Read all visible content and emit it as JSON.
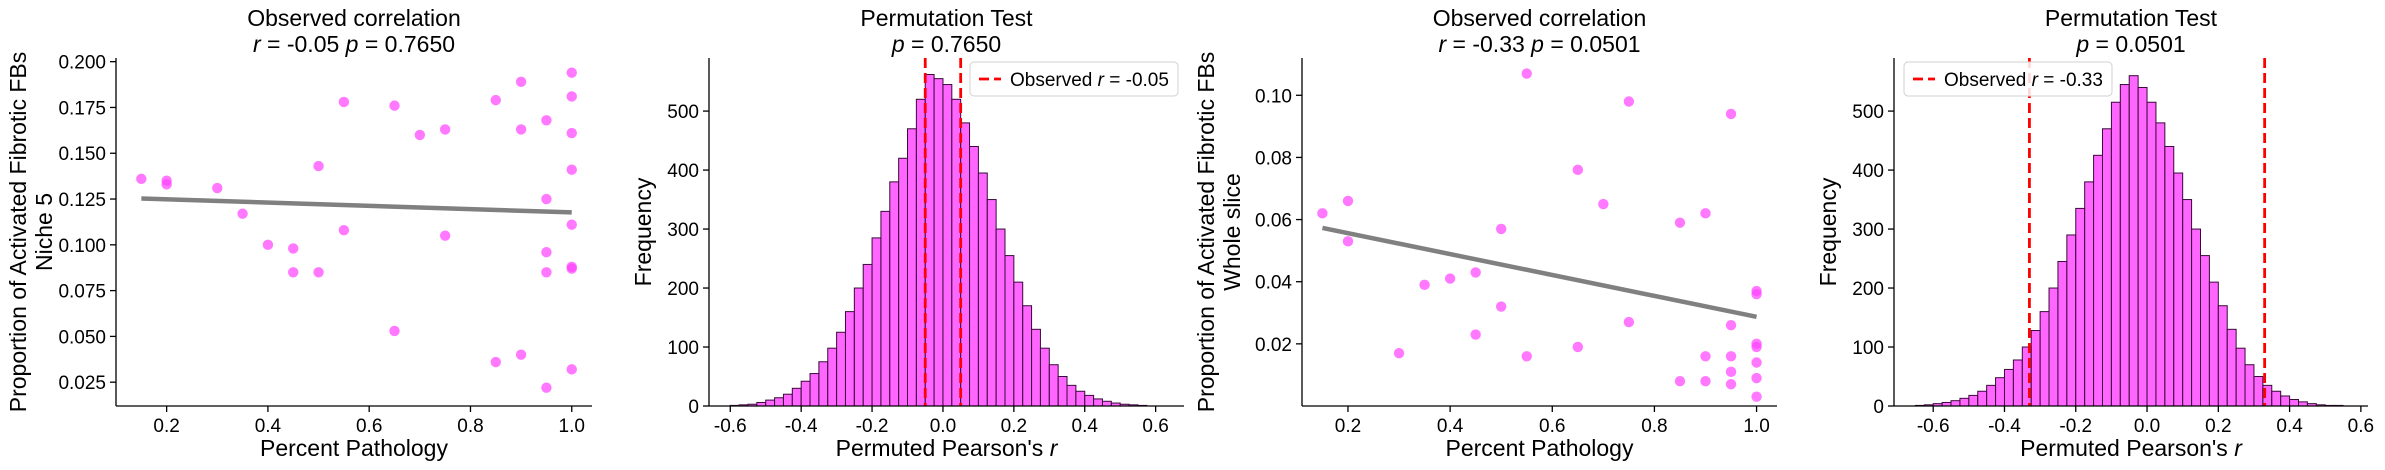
{
  "chart_data": [
    {
      "type": "scatter",
      "title": "Observed correlation",
      "subtitle": {
        "r_label": "r",
        "r_text": " = -0.05  ",
        "p_label": "p",
        "p_text": " = 0.7650"
      },
      "xlabel": "Percent Pathology",
      "ylabel": [
        "Proportion of Activated Fibrotic FBs",
        "Niche 5"
      ],
      "xlim": [
        0.1,
        1.04
      ],
      "ylim": [
        0.012,
        0.202
      ],
      "xticks": [
        0.2,
        0.4,
        0.6,
        0.8,
        1.0
      ],
      "xtick_labels": [
        "0.2",
        "0.4",
        "0.6",
        "0.8",
        "1.0"
      ],
      "yticks": [
        0.025,
        0.05,
        0.075,
        0.1,
        0.125,
        0.15,
        0.175,
        0.2
      ],
      "ytick_labels": [
        "0.025",
        "0.050",
        "0.075",
        "0.100",
        "0.125",
        "0.150",
        "0.175",
        "0.200"
      ],
      "points": [
        [
          0.15,
          0.136
        ],
        [
          0.2,
          0.135
        ],
        [
          0.2,
          0.133
        ],
        [
          0.3,
          0.131
        ],
        [
          0.35,
          0.117
        ],
        [
          0.4,
          0.1
        ],
        [
          0.45,
          0.098
        ],
        [
          0.45,
          0.085
        ],
        [
          0.5,
          0.143
        ],
        [
          0.5,
          0.085
        ],
        [
          0.55,
          0.178
        ],
        [
          0.55,
          0.108
        ],
        [
          0.65,
          0.176
        ],
        [
          0.65,
          0.053
        ],
        [
          0.7,
          0.16
        ],
        [
          0.75,
          0.163
        ],
        [
          0.75,
          0.105
        ],
        [
          0.85,
          0.179
        ],
        [
          0.85,
          0.036
        ],
        [
          0.9,
          0.189
        ],
        [
          0.9,
          0.163
        ],
        [
          0.9,
          0.04
        ],
        [
          0.95,
          0.168
        ],
        [
          0.95,
          0.125
        ],
        [
          0.95,
          0.096
        ],
        [
          0.95,
          0.085
        ],
        [
          0.95,
          0.022
        ],
        [
          1.0,
          0.194
        ],
        [
          1.0,
          0.181
        ],
        [
          1.0,
          0.161
        ],
        [
          1.0,
          0.141
        ],
        [
          1.0,
          0.111
        ],
        [
          1.0,
          0.088
        ],
        [
          1.0,
          0.087
        ],
        [
          1.0,
          0.032
        ]
      ],
      "fit_line": {
        "x": [
          0.15,
          1.0
        ],
        "y": [
          0.1253,
          0.1177
        ]
      },
      "colors": {
        "points": "#ff44ff",
        "fit": "#808080"
      }
    },
    {
      "type": "bar",
      "title": "Permutation Test",
      "subtitle": {
        "p_label": "p",
        "p_text": " = 0.7650"
      },
      "xlabel": {
        "prefix": "Permuted Pearson's ",
        "italic": "r"
      },
      "ylabel": "Frequency",
      "xlim": [
        -0.66,
        0.68
      ],
      "ylim": [
        0,
        590
      ],
      "xticks": [
        -0.6,
        -0.4,
        -0.2,
        0.0,
        0.2,
        0.4,
        0.6
      ],
      "xtick_labels": [
        "-0.6",
        "-0.4",
        "-0.2",
        "0.0",
        "0.2",
        "0.4",
        "0.6"
      ],
      "yticks": [
        0,
        100,
        200,
        300,
        400,
        500
      ],
      "ytick_labels": [
        "0",
        "100",
        "200",
        "300",
        "400",
        "500"
      ],
      "bin_start": -0.6,
      "bin_width": 0.025,
      "counts": [
        1,
        2,
        3,
        6,
        10,
        14,
        20,
        30,
        42,
        55,
        75,
        98,
        125,
        160,
        200,
        240,
        285,
        330,
        380,
        420,
        470,
        520,
        562,
        555,
        545,
        520,
        480,
        440,
        395,
        350,
        300,
        255,
        210,
        170,
        130,
        98,
        70,
        50,
        35,
        25,
        18,
        12,
        8,
        5,
        3,
        2,
        1
      ],
      "observed_lines": [
        -0.05,
        0.05
      ],
      "legend": {
        "prefix": "Observed ",
        "italic": "r",
        "suffix": " = -0.05",
        "position": "upper right"
      },
      "colors": {
        "bars": "#ff44ff",
        "edge": "#3a0a3a",
        "observed": "#ff0000"
      }
    },
    {
      "type": "scatter",
      "title": "Observed correlation",
      "subtitle": {
        "r_label": "r",
        "r_text": " = -0.33  ",
        "p_label": "p",
        "p_text": " = 0.0501"
      },
      "xlabel": "Percent Pathology",
      "ylabel": [
        "Proportion of Activated Fibrotic FBs",
        "Whole slice"
      ],
      "xlim": [
        0.11,
        1.04
      ],
      "ylim": [
        0.0,
        0.112
      ],
      "xticks": [
        0.2,
        0.4,
        0.6,
        0.8,
        1.0
      ],
      "xtick_labels": [
        "0.2",
        "0.4",
        "0.6",
        "0.8",
        "1.0"
      ],
      "yticks": [
        0.02,
        0.04,
        0.06,
        0.08,
        0.1
      ],
      "ytick_labels": [
        "0.02",
        "0.04",
        "0.06",
        "0.08",
        "0.10"
      ],
      "points": [
        [
          0.15,
          0.062
        ],
        [
          0.2,
          0.066
        ],
        [
          0.2,
          0.053
        ],
        [
          0.3,
          0.017
        ],
        [
          0.35,
          0.039
        ],
        [
          0.4,
          0.041
        ],
        [
          0.45,
          0.043
        ],
        [
          0.45,
          0.023
        ],
        [
          0.5,
          0.057
        ],
        [
          0.5,
          0.032
        ],
        [
          0.55,
          0.107
        ],
        [
          0.55,
          0.016
        ],
        [
          0.65,
          0.076
        ],
        [
          0.65,
          0.019
        ],
        [
          0.7,
          0.065
        ],
        [
          0.75,
          0.098
        ],
        [
          0.75,
          0.027
        ],
        [
          0.85,
          0.059
        ],
        [
          0.85,
          0.008
        ],
        [
          0.9,
          0.062
        ],
        [
          0.9,
          0.016
        ],
        [
          0.9,
          0.008
        ],
        [
          0.95,
          0.094
        ],
        [
          0.95,
          0.026
        ],
        [
          0.95,
          0.016
        ],
        [
          0.95,
          0.011
        ],
        [
          0.95,
          0.007
        ],
        [
          1.0,
          0.037
        ],
        [
          1.0,
          0.036
        ],
        [
          1.0,
          0.02
        ],
        [
          1.0,
          0.019
        ],
        [
          1.0,
          0.014
        ],
        [
          1.0,
          0.009
        ],
        [
          1.0,
          0.003
        ]
      ],
      "fit_line": {
        "x": [
          0.15,
          1.0
        ],
        "y": [
          0.0573,
          0.0287
        ]
      },
      "colors": {
        "points": "#ff44ff",
        "fit": "#808080"
      }
    },
    {
      "type": "bar",
      "title": "Permutation Test",
      "subtitle": {
        "p_label": "p",
        "p_text": " = 0.0501"
      },
      "xlabel": {
        "prefix": "Permuted Pearson's ",
        "italic": "r"
      },
      "ylabel": "Frequency",
      "xlim": [
        -0.71,
        0.62
      ],
      "ylim": [
        0,
        590
      ],
      "xticks": [
        -0.6,
        -0.4,
        -0.2,
        0.0,
        0.2,
        0.4,
        0.6
      ],
      "xtick_labels": [
        "-0.6",
        "-0.4",
        "-0.2",
        "0.0",
        "0.2",
        "0.4",
        "0.6"
      ],
      "yticks": [
        0,
        100,
        200,
        300,
        400,
        500
      ],
      "ytick_labels": [
        "0",
        "100",
        "200",
        "300",
        "400",
        "500"
      ],
      "bin_start": -0.65,
      "bin_width": 0.025,
      "counts": [
        1,
        2,
        4,
        6,
        9,
        13,
        18,
        25,
        35,
        48,
        62,
        78,
        100,
        128,
        160,
        200,
        245,
        290,
        335,
        380,
        425,
        470,
        515,
        545,
        560,
        540,
        515,
        480,
        440,
        395,
        350,
        300,
        255,
        210,
        170,
        130,
        98,
        70,
        50,
        35,
        25,
        17,
        11,
        7,
        4,
        2,
        1,
        1
      ],
      "observed_lines": [
        -0.33,
        0.33
      ],
      "legend": {
        "prefix": "Observed ",
        "italic": "r",
        "suffix": " = -0.33",
        "position": "upper left"
      },
      "colors": {
        "bars": "#ff44ff",
        "edge": "#3a0a3a",
        "observed": "#ff0000"
      }
    }
  ]
}
